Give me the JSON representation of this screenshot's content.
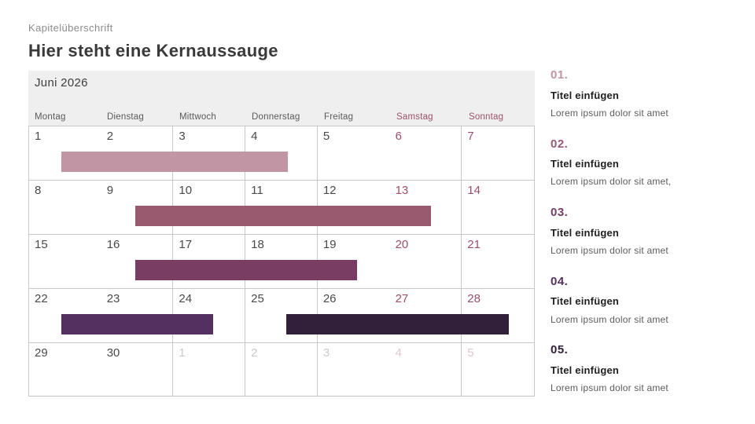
{
  "page": {
    "kicker": "Kapitelüberschrift",
    "title": "Hier steht eine Kernaussauge"
  },
  "calendar": {
    "month_label": "Juni 2026",
    "header_bg": "#f0eff0",
    "grid_line_color": "#c8c8c8",
    "weekend_color": "#9b5068",
    "weekdays": [
      {
        "label": "Montag",
        "weekend": false
      },
      {
        "label": "Dienstag",
        "weekend": false
      },
      {
        "label": "Mittwoch",
        "weekend": false
      },
      {
        "label": "Donnerstag",
        "weekend": false
      },
      {
        "label": "Freitag",
        "weekend": false
      },
      {
        "label": "Samstag",
        "weekend": true
      },
      {
        "label": "Sonntag",
        "weekend": true
      }
    ],
    "weeks": [
      {
        "days": [
          {
            "num": "1",
            "type": "current"
          },
          {
            "num": "2",
            "type": "current"
          },
          {
            "num": "3",
            "type": "current"
          },
          {
            "num": "4",
            "type": "current"
          },
          {
            "num": "5",
            "type": "current"
          },
          {
            "num": "6",
            "type": "weekend"
          },
          {
            "num": "7",
            "type": "weekend"
          }
        ],
        "bars": [
          {
            "name": "event-bar-1",
            "left_pct": 6.4,
            "width_pct": 44.8,
            "color": "#c295a5"
          }
        ]
      },
      {
        "days": [
          {
            "num": "8",
            "type": "current"
          },
          {
            "num": "9",
            "type": "current"
          },
          {
            "num": "10",
            "type": "current"
          },
          {
            "num": "11",
            "type": "current"
          },
          {
            "num": "12",
            "type": "current"
          },
          {
            "num": "13",
            "type": "weekend"
          },
          {
            "num": "14",
            "type": "weekend"
          }
        ],
        "bars": [
          {
            "name": "event-bar-2",
            "left_pct": 21.1,
            "width_pct": 58.5,
            "color": "#995a70"
          }
        ]
      },
      {
        "days": [
          {
            "num": "15",
            "type": "current"
          },
          {
            "num": "16",
            "type": "current"
          },
          {
            "num": "17",
            "type": "current"
          },
          {
            "num": "18",
            "type": "current"
          },
          {
            "num": "19",
            "type": "current"
          },
          {
            "num": "20",
            "type": "weekend"
          },
          {
            "num": "21",
            "type": "weekend"
          }
        ],
        "bars": [
          {
            "name": "event-bar-3",
            "left_pct": 21.1,
            "width_pct": 43.8,
            "color": "#793c62"
          }
        ]
      },
      {
        "days": [
          {
            "num": "22",
            "type": "current"
          },
          {
            "num": "23",
            "type": "current"
          },
          {
            "num": "24",
            "type": "current"
          },
          {
            "num": "25",
            "type": "current"
          },
          {
            "num": "26",
            "type": "current"
          },
          {
            "num": "27",
            "type": "weekend"
          },
          {
            "num": "28",
            "type": "weekend"
          }
        ],
        "bars": [
          {
            "name": "event-bar-4",
            "left_pct": 6.4,
            "width_pct": 30.0,
            "color": "#533060"
          },
          {
            "name": "event-bar-5",
            "left_pct": 50.9,
            "width_pct": 44.1,
            "color": "#32203a"
          }
        ]
      },
      {
        "days": [
          {
            "num": "29",
            "type": "current"
          },
          {
            "num": "30",
            "type": "current"
          },
          {
            "num": "1",
            "type": "next"
          },
          {
            "num": "2",
            "type": "next"
          },
          {
            "num": "3",
            "type": "next"
          },
          {
            "num": "4",
            "type": "next-weekend"
          },
          {
            "num": "5",
            "type": "next-weekend"
          }
        ],
        "bars": []
      }
    ]
  },
  "sidebar": {
    "items": [
      {
        "number": "01.",
        "number_color": "#c295a5",
        "title": "Titel einfügen",
        "body": "Lorem ipsum dolor sit amet"
      },
      {
        "number": "02.",
        "number_color": "#995a70",
        "title": "Titel einfügen",
        "body": "Lorem ipsum dolor sit amet,"
      },
      {
        "number": "03.",
        "number_color": "#793c62",
        "title": "Titel einfügen",
        "body": "Lorem ipsum dolor sit amet"
      },
      {
        "number": "04.",
        "number_color": "#533060",
        "title": "Titel einfügen",
        "body": "Lorem ipsum dolor sit amet"
      },
      {
        "number": "05.",
        "number_color": "#32203a",
        "title": "Titel einfügen",
        "body": "Lorem ipsum dolor sit amet"
      }
    ]
  }
}
